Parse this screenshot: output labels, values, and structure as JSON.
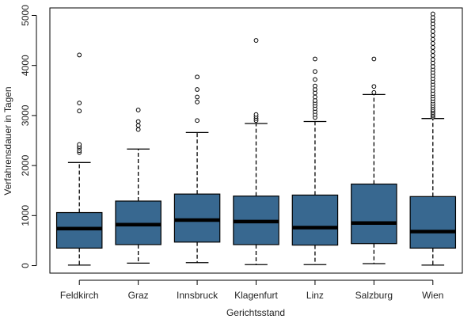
{
  "chart_data": {
    "type": "boxplot",
    "title": "",
    "xlabel": "Gerichtsstand",
    "ylabel": "Verfahrensdauer in Tagen",
    "ylim": [
      -150,
      5150
    ],
    "yticks": [
      0,
      1000,
      2000,
      3000,
      4000,
      5000
    ],
    "grid": false,
    "box_color": "#386890",
    "categories": [
      "Feldkirch",
      "Graz",
      "Innsbruck",
      "Klagenfurt",
      "Linz",
      "Salzburg",
      "Wien"
    ],
    "boxes": [
      {
        "name": "Feldkirch",
        "whisker_low": 10,
        "q1": 350,
        "median": 740,
        "q3": 1060,
        "whisker_high": 2060,
        "outliers": [
          2260,
          2300,
          2350,
          2380,
          2420,
          3090,
          3250,
          4210
        ]
      },
      {
        "name": "Graz",
        "whisker_low": 50,
        "q1": 420,
        "median": 820,
        "q3": 1290,
        "whisker_high": 2330,
        "outliers": [
          2720,
          2800,
          2880,
          3110
        ]
      },
      {
        "name": "Innsbruck",
        "whisker_low": 60,
        "q1": 470,
        "median": 910,
        "q3": 1430,
        "whisker_high": 2660,
        "outliers": [
          2900,
          3270,
          3370,
          3520,
          3770
        ]
      },
      {
        "name": "Klagenfurt",
        "whisker_low": 20,
        "q1": 420,
        "median": 880,
        "q3": 1390,
        "whisker_high": 2840,
        "outliers": [
          2900,
          2940,
          2980,
          3020,
          4500
        ]
      },
      {
        "name": "Linz",
        "whisker_low": 20,
        "q1": 410,
        "median": 760,
        "q3": 1410,
        "whisker_high": 2880,
        "outliers": [
          2960,
          3020,
          3080,
          3140,
          3200,
          3250,
          3300,
          3370,
          3450,
          3520,
          3590,
          3720,
          3880,
          4130
        ]
      },
      {
        "name": "Salzburg",
        "whisker_low": 40,
        "q1": 440,
        "median": 850,
        "q3": 1630,
        "whisker_high": 3420,
        "outliers": [
          3460,
          3580,
          4130
        ]
      },
      {
        "name": "Wien",
        "whisker_low": 10,
        "q1": 350,
        "median": 680,
        "q3": 1380,
        "whisker_high": 2940,
        "outliers": [
          2970,
          3000,
          3030,
          3060,
          3090,
          3120,
          3160,
          3200,
          3240,
          3290,
          3340,
          3390,
          3440,
          3500,
          3560,
          3620,
          3680,
          3740,
          3800,
          3860,
          3920,
          3980,
          4050,
          4120,
          4200,
          4280,
          4360,
          4440,
          4520,
          4600,
          4680,
          4760,
          4830,
          4900,
          4960,
          5030
        ]
      }
    ]
  }
}
